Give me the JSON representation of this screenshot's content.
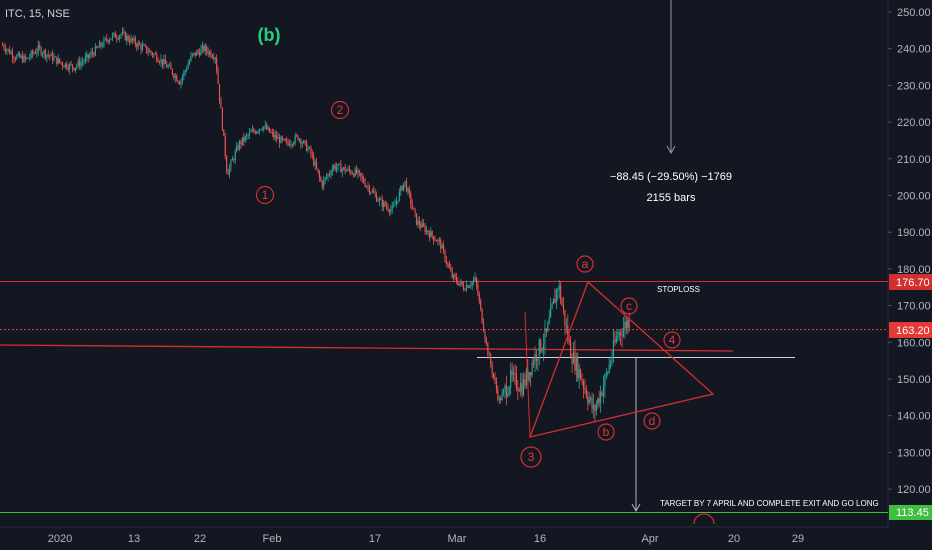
{
  "symbol": {
    "title": "ITC, 15, NSE"
  },
  "price_axis": {
    "ticks": [
      "250.00",
      "240.00",
      "230.00",
      "220.00",
      "210.00",
      "200.00",
      "190.00",
      "180.00",
      "170.00",
      "160.00",
      "150.00",
      "140.00",
      "130.00",
      "120.00"
    ],
    "badges": [
      {
        "text": "176.70",
        "value": 176.7,
        "color": "#d32f2f"
      },
      {
        "text": "163.20",
        "value": 163.2,
        "color": "#e53935"
      },
      {
        "text": "113.45",
        "value": 113.45,
        "color": "#3fbf3f"
      }
    ]
  },
  "time_axis": {
    "ticks": [
      "2020",
      "13",
      "22",
      "Feb",
      "17",
      "Mar",
      "16",
      "Apr",
      "20",
      "29"
    ]
  },
  "annotations": {
    "measure_line1": "−88.45 (−29.50%) −1769",
    "measure_line2": "2155 bars",
    "stoploss": "STOPLOSS",
    "target": "TARGET BY 7 APRIL AND COMPLETE EXIT AND GO LONG"
  },
  "wave_labels": {
    "b_major": "(b)",
    "w1": "1",
    "w2": "2",
    "w3": "3",
    "w4": "4",
    "a": "a",
    "b": "b",
    "c": "c",
    "d": "d"
  },
  "chart_data": {
    "type": "candlestick",
    "title": "ITC, 15, NSE",
    "ylim": [
      111,
      254
    ],
    "x_tick_labels": [
      "2020",
      "13",
      "22",
      "Feb",
      "17",
      "Mar",
      "16",
      "Apr",
      "20",
      "29"
    ],
    "price_path": [
      [
        "start",
        241
      ],
      [
        "",
        238
      ],
      [
        "",
        237
      ],
      [
        "",
        240
      ],
      [
        "",
        238
      ],
      [
        "",
        236
      ],
      [
        "",
        235
      ],
      [
        "13",
        237
      ],
      [
        "",
        240
      ],
      [
        "",
        243
      ],
      [
        "",
        244
      ],
      [
        "",
        242
      ],
      [
        "22",
        240
      ],
      [
        "",
        238
      ],
      [
        "",
        235
      ],
      [
        "",
        231
      ],
      [
        "",
        238
      ],
      [
        "(b)",
        240
      ],
      [
        "",
        238
      ],
      [
        "Feb",
        206
      ],
      [
        "",
        214
      ],
      [
        "",
        217
      ],
      [
        "",
        219
      ],
      [
        "",
        216
      ],
      [
        "",
        214
      ],
      [
        "",
        216
      ],
      [
        "",
        212
      ],
      [
        "17",
        203
      ],
      [
        "",
        208
      ],
      [
        "",
        207
      ],
      [
        "",
        206
      ],
      [
        "",
        202
      ],
      [
        "",
        198
      ],
      [
        "",
        196
      ],
      [
        "",
        204
      ],
      [
        "Mar",
        193
      ],
      [
        "",
        190
      ],
      [
        "",
        187
      ],
      [
        "",
        178
      ],
      [
        "",
        175
      ],
      [
        "",
        177
      ],
      [
        "",
        158
      ],
      [
        "16",
        144
      ],
      [
        "",
        150
      ],
      [
        "",
        148
      ],
      [
        "",
        156
      ],
      [
        "",
        162
      ],
      [
        "",
        176
      ],
      [
        "",
        158
      ],
      [
        "",
        150
      ],
      [
        "",
        141
      ],
      [
        "",
        150
      ],
      [
        "",
        162
      ],
      [
        "end",
        166
      ]
    ],
    "horizontal_levels": [
      {
        "label": "STOPLOSS",
        "value": 176.7
      },
      {
        "label": "",
        "value": 163.2
      },
      {
        "label": "",
        "value": 113.45
      }
    ],
    "measurement": {
      "change": -88.45,
      "percent": -29.5,
      "ticks": -1769,
      "bars": 2155
    },
    "grid": false,
    "legend": "none"
  }
}
